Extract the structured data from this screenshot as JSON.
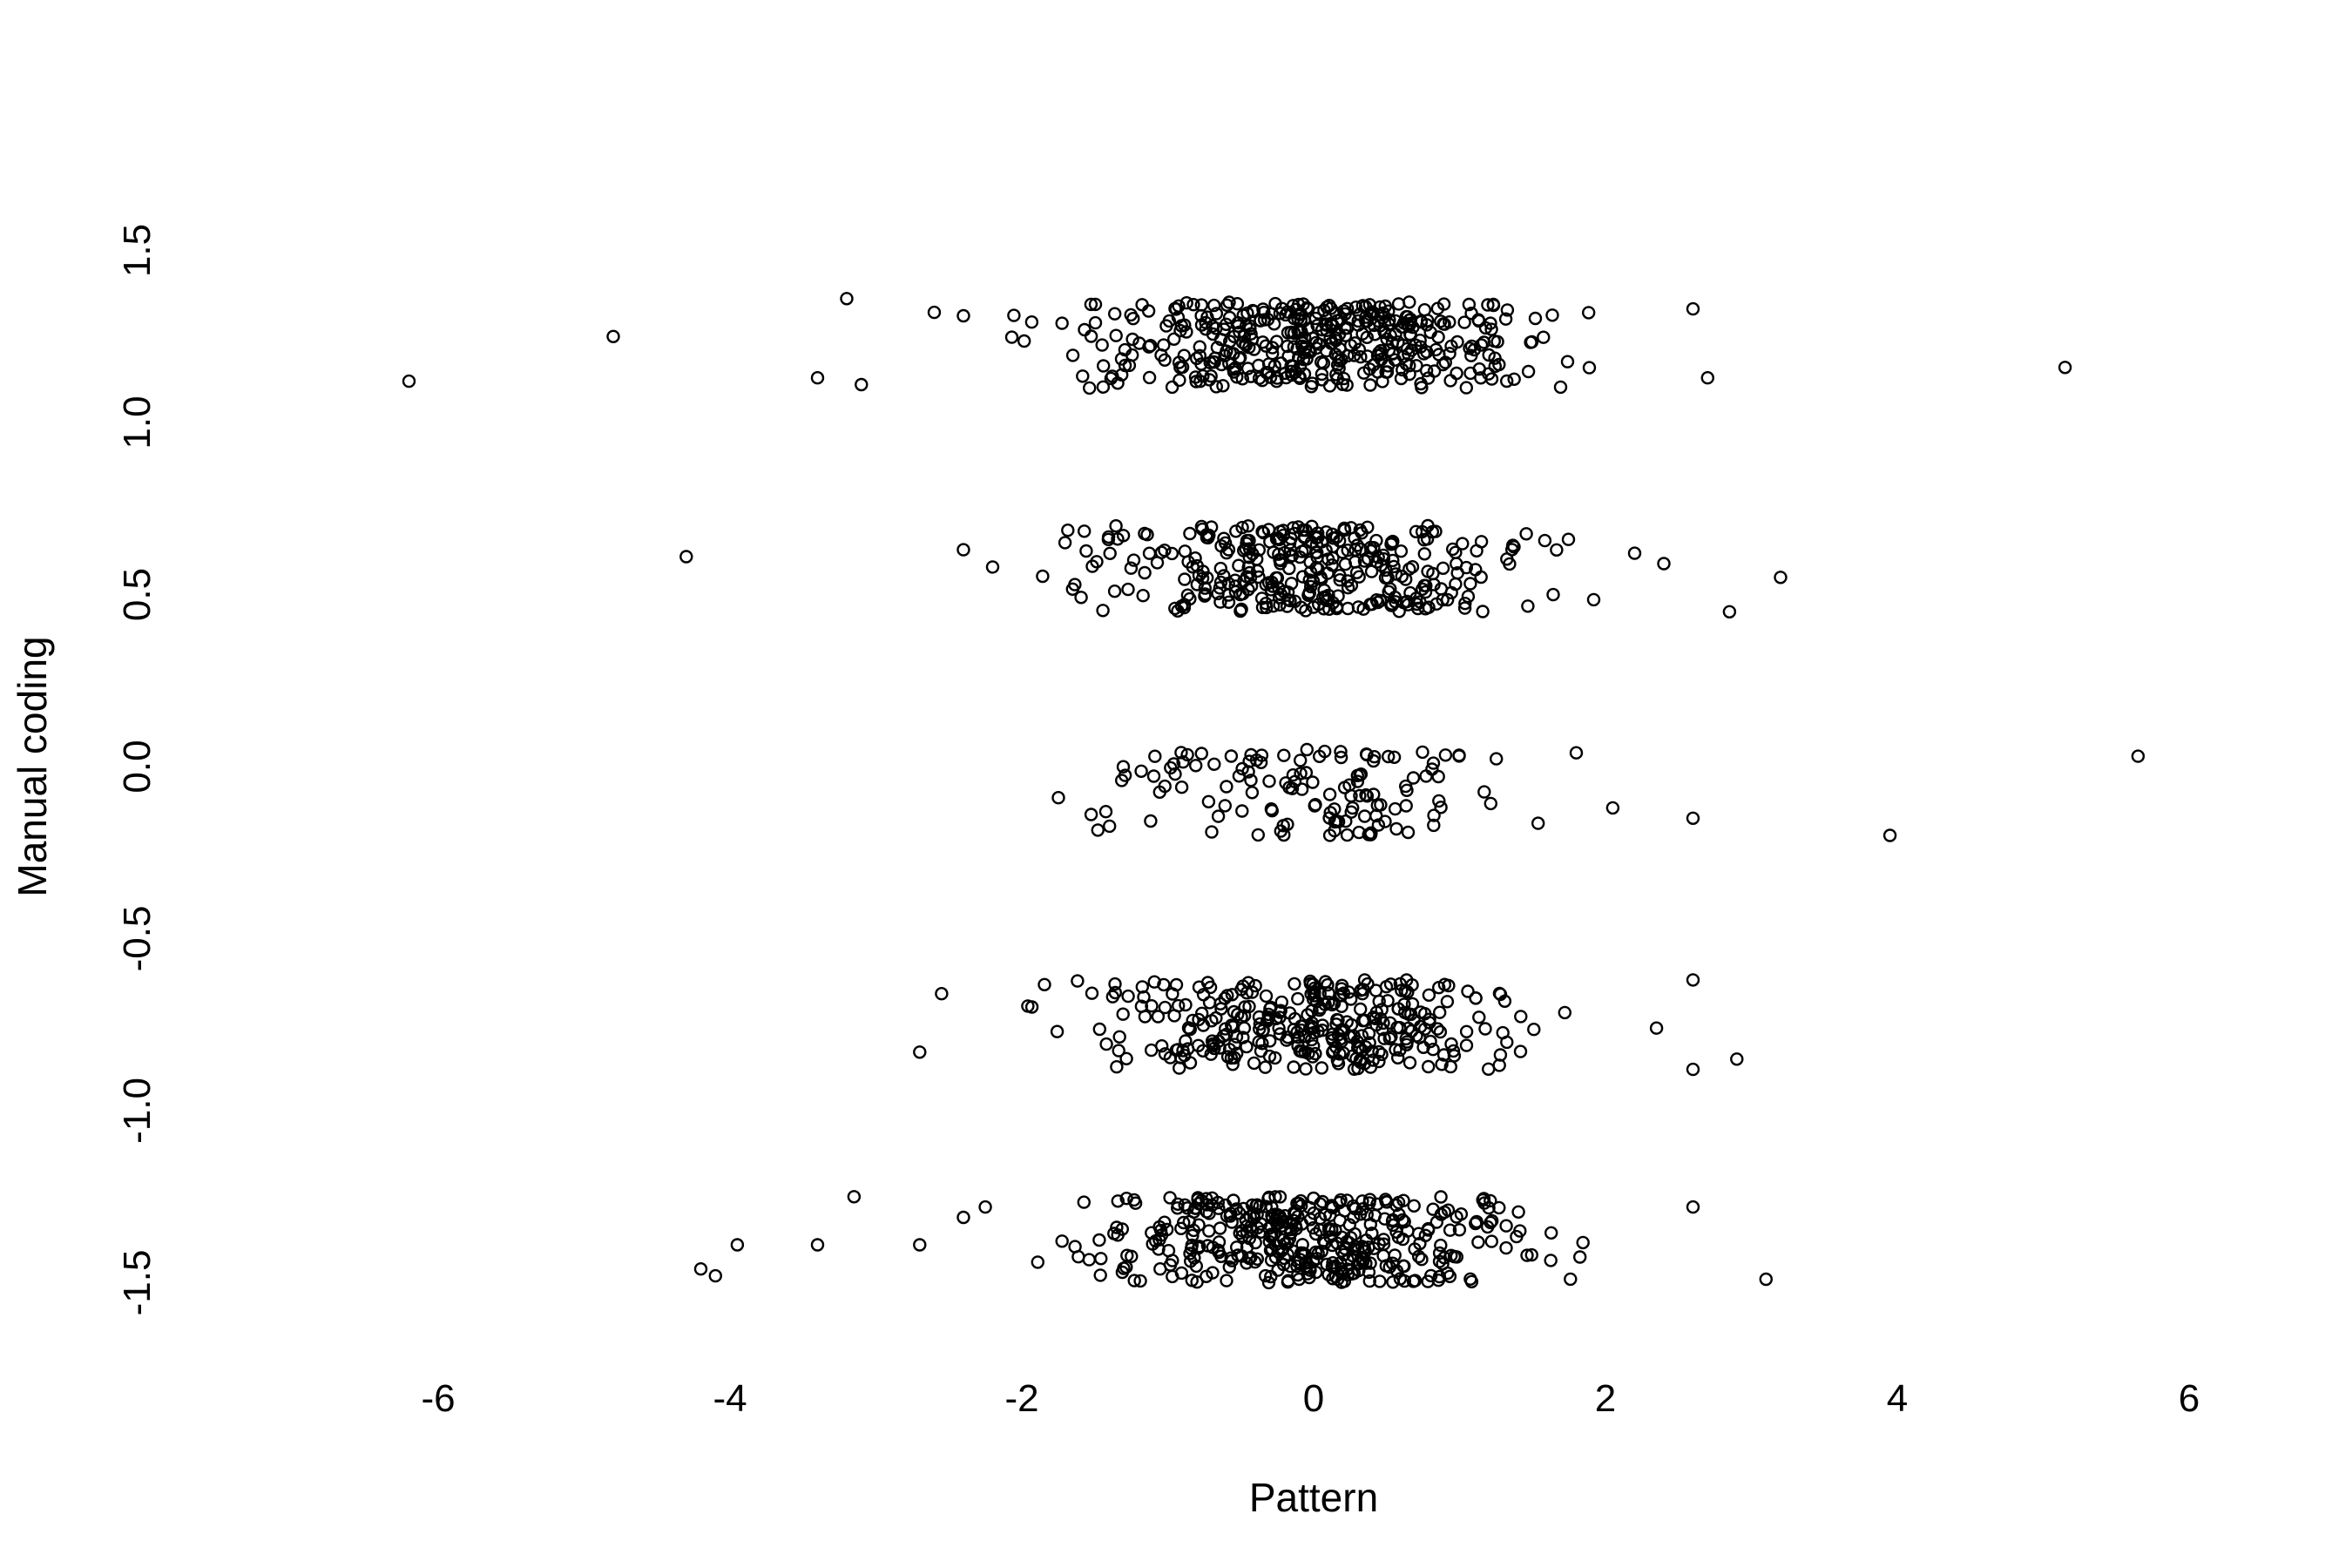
{
  "chart_data": {
    "type": "scatter",
    "title": "",
    "xlabel": "Pattern",
    "ylabel": "Manual coding",
    "xlim": [
      -8,
      7
    ],
    "ylim": [
      -1.75,
      1.75
    ],
    "x_ticks": [
      -6,
      -4,
      -2,
      0,
      2,
      4,
      6
    ],
    "x_tick_labels": [
      "-6",
      "-4",
      "-2",
      "0",
      "2",
      "4",
      "6"
    ],
    "y_ticks": [
      -1.5,
      -1.0,
      -0.5,
      0.0,
      0.5,
      1.0,
      1.5
    ],
    "y_tick_labels": [
      "-1.5",
      "-1.0",
      "-0.5",
      "0.0",
      "0.5",
      "1.0",
      "1.5"
    ],
    "grid": false,
    "box": false,
    "marker": "open-circle",
    "point_color": "#000000",
    "jitter_groups": [
      {
        "level": 1.0,
        "yrange": [
          1.1,
          1.35
        ],
        "n": 420,
        "spread": 0.95,
        "outliers": [
          [
            -6.2,
            1.12
          ],
          [
            -4.8,
            1.25
          ],
          [
            -3.2,
            1.36
          ],
          [
            -3.4,
            1.13
          ],
          [
            -3.1,
            1.11
          ],
          [
            -2.6,
            1.32
          ],
          [
            -2.4,
            1.31
          ],
          [
            2.6,
            1.33
          ],
          [
            2.7,
            1.13
          ],
          [
            5.15,
            1.16
          ]
        ]
      },
      {
        "level": 0.5,
        "yrange": [
          0.45,
          0.7
        ],
        "n": 330,
        "spread": 0.85,
        "outliers": [
          [
            -4.3,
            0.61
          ],
          [
            -2.4,
            0.63
          ],
          [
            -2.2,
            0.58
          ],
          [
            2.2,
            0.62
          ],
          [
            2.4,
            0.59
          ],
          [
            2.85,
            0.45
          ],
          [
            3.2,
            0.55
          ]
        ]
      },
      {
        "level": 0.0,
        "yrange": [
          -0.2,
          0.05
        ],
        "n": 130,
        "spread": 0.8,
        "outliers": [
          [
            1.8,
            0.04
          ],
          [
            2.05,
            -0.12
          ],
          [
            2.6,
            -0.15
          ],
          [
            3.95,
            -0.2
          ],
          [
            5.65,
            0.03
          ]
        ]
      },
      {
        "level": -0.5,
        "yrange": [
          -0.88,
          -0.62
        ],
        "n": 330,
        "spread": 0.8,
        "outliers": [
          [
            -2.7,
            -0.83
          ],
          [
            -2.55,
            -0.66
          ],
          [
            2.35,
            -0.76
          ],
          [
            2.6,
            -0.62
          ],
          [
            2.6,
            -0.88
          ],
          [
            2.9,
            -0.85
          ]
        ]
      },
      {
        "level": -1.0,
        "yrange": [
          -1.5,
          -1.25
        ],
        "n": 400,
        "spread": 0.85,
        "outliers": [
          [
            -4.2,
            -1.46
          ],
          [
            -4.1,
            -1.48
          ],
          [
            -3.95,
            -1.39
          ],
          [
            -3.4,
            -1.39
          ],
          [
            -3.15,
            -1.25
          ],
          [
            -2.7,
            -1.39
          ],
          [
            -2.4,
            -1.31
          ],
          [
            -2.25,
            -1.28
          ],
          [
            2.6,
            -1.28
          ],
          [
            3.1,
            -1.49
          ]
        ]
      }
    ]
  }
}
